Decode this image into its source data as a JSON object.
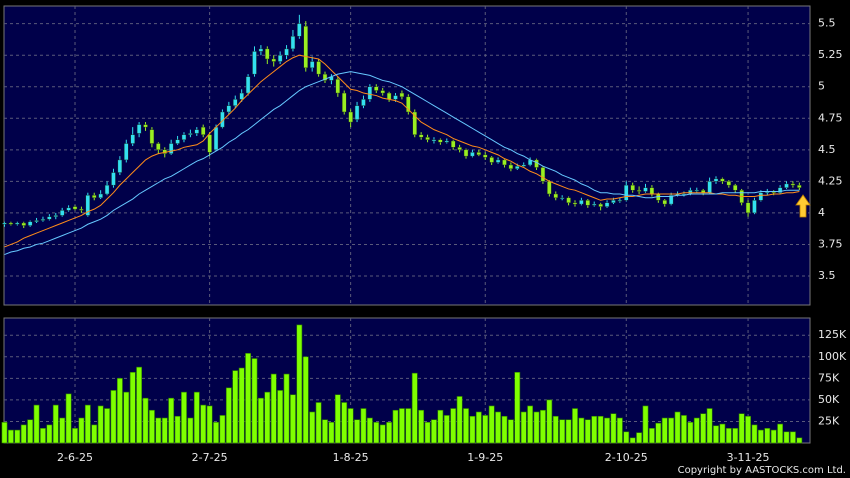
{
  "chart_data": [
    {
      "type": "candlestick",
      "up_color": "#33e0f0",
      "down_color": "#99ee22",
      "ylim": [
        3.27,
        5.64
      ],
      "yticks": [
        3.5,
        3.75,
        4,
        4.25,
        4.5,
        4.75,
        5,
        5.25,
        5.5
      ],
      "grid": true,
      "open": [
        3.91,
        3.92,
        3.91,
        3.92,
        3.9,
        3.93,
        3.94,
        3.95,
        3.97,
        3.98,
        4.02,
        4.05,
        4.03,
        3.98,
        4.14,
        4.12,
        4.15,
        4.22,
        4.32,
        4.42,
        4.55,
        4.63,
        4.7,
        4.66,
        4.55,
        4.5,
        4.47,
        4.55,
        4.58,
        4.62,
        4.63,
        4.68,
        4.62,
        4.5,
        4.68,
        4.8,
        4.85,
        4.9,
        4.95,
        5.1,
        5.28,
        5.3,
        5.22,
        5.2,
        5.25,
        5.3,
        5.4,
        5.48,
        5.15,
        5.2,
        5.1,
        5.05,
        5.06,
        4.95,
        4.8,
        4.74,
        4.85,
        4.9,
        5.0,
        4.97,
        4.95,
        4.9,
        4.95,
        4.92,
        4.8,
        4.62,
        4.6,
        4.57,
        4.58,
        4.56,
        4.57,
        4.52,
        4.5,
        4.45,
        4.48,
        4.46,
        4.44,
        4.4,
        4.42,
        4.38,
        4.35,
        4.37,
        4.38,
        4.42,
        4.36,
        4.25,
        4.15,
        4.12,
        4.12,
        4.08,
        4.07,
        4.1,
        4.06,
        4.07,
        4.05,
        4.08,
        4.1,
        4.1,
        4.22,
        4.18,
        4.17,
        4.2,
        4.15,
        4.1,
        4.07,
        4.14,
        4.15,
        4.15,
        4.18,
        4.18,
        4.16,
        4.25,
        4.27,
        4.25,
        4.22,
        4.18,
        4.08,
        4.0,
        4.1,
        4.16,
        4.17,
        4.16,
        4.2,
        4.23,
        4.22
      ],
      "high": [
        3.93,
        3.93,
        3.93,
        3.93,
        3.94,
        3.96,
        3.97,
        3.99,
        4.0,
        4.04,
        4.06,
        4.06,
        4.05,
        4.16,
        4.16,
        4.18,
        4.25,
        4.35,
        4.45,
        4.58,
        4.68,
        4.72,
        4.72,
        4.68,
        4.56,
        4.52,
        4.58,
        4.61,
        4.64,
        4.66,
        4.68,
        4.7,
        4.64,
        4.7,
        4.82,
        4.88,
        4.93,
        4.98,
        5.1,
        5.32,
        5.33,
        5.32,
        5.25,
        5.28,
        5.33,
        5.45,
        5.57,
        5.52,
        5.24,
        5.22,
        5.12,
        5.1,
        5.08,
        4.97,
        4.82,
        4.88,
        4.93,
        5.02,
        5.02,
        4.99,
        4.96,
        4.95,
        4.97,
        4.94,
        4.82,
        4.64,
        4.62,
        4.6,
        4.59,
        4.59,
        4.58,
        4.54,
        4.51,
        4.5,
        4.5,
        4.48,
        4.45,
        4.44,
        4.43,
        4.4,
        4.39,
        4.4,
        4.44,
        4.43,
        4.37,
        4.26,
        4.17,
        4.14,
        4.13,
        4.1,
        4.12,
        4.11,
        4.09,
        4.08,
        4.1,
        4.12,
        4.12,
        4.25,
        4.24,
        4.21,
        4.23,
        4.22,
        4.16,
        4.11,
        4.16,
        4.17,
        4.17,
        4.2,
        4.2,
        4.19,
        4.28,
        4.29,
        4.28,
        4.26,
        4.23,
        4.19,
        4.1,
        4.12,
        4.18,
        4.19,
        4.18,
        4.22,
        4.25,
        4.25,
        4.24
      ],
      "low": [
        3.89,
        3.9,
        3.9,
        3.88,
        3.89,
        3.92,
        3.93,
        3.94,
        3.95,
        3.97,
        4.01,
        4.02,
        4.0,
        3.97,
        4.1,
        4.11,
        4.14,
        4.2,
        4.3,
        4.4,
        4.53,
        4.6,
        4.65,
        4.52,
        4.47,
        4.44,
        4.46,
        4.54,
        4.56,
        4.6,
        4.61,
        4.6,
        4.45,
        4.49,
        4.67,
        4.78,
        4.83,
        4.88,
        4.93,
        5.08,
        5.25,
        5.18,
        5.16,
        5.18,
        5.22,
        5.28,
        5.38,
        5.12,
        5.12,
        5.08,
        5.03,
        5.02,
        4.92,
        4.78,
        4.68,
        4.72,
        4.83,
        4.88,
        4.95,
        4.93,
        4.88,
        4.88,
        4.9,
        4.78,
        4.6,
        4.58,
        4.56,
        4.55,
        4.54,
        4.55,
        4.5,
        4.48,
        4.43,
        4.44,
        4.45,
        4.42,
        4.38,
        4.39,
        4.36,
        4.33,
        4.34,
        4.36,
        4.37,
        4.34,
        4.23,
        4.13,
        4.1,
        4.1,
        4.06,
        4.05,
        4.06,
        4.04,
        4.05,
        4.02,
        4.04,
        4.07,
        4.08,
        4.09,
        4.16,
        4.15,
        4.16,
        4.13,
        4.08,
        4.05,
        4.06,
        4.13,
        4.13,
        4.14,
        4.16,
        4.14,
        4.15,
        4.23,
        4.23,
        4.2,
        4.16,
        4.06,
        3.97,
        3.99,
        4.09,
        4.14,
        4.14,
        4.15,
        4.19,
        4.2,
        4.18
      ],
      "close": [
        3.92,
        3.91,
        3.92,
        3.9,
        3.93,
        3.94,
        3.95,
        3.97,
        3.98,
        4.02,
        4.04,
        4.03,
        4.02,
        4.14,
        4.12,
        4.15,
        4.22,
        4.32,
        4.42,
        4.55,
        4.62,
        4.7,
        4.68,
        4.55,
        4.5,
        4.47,
        4.55,
        4.58,
        4.62,
        4.63,
        4.66,
        4.62,
        4.48,
        4.68,
        4.8,
        4.85,
        4.9,
        4.95,
        5.08,
        5.28,
        5.3,
        5.22,
        5.2,
        5.25,
        5.3,
        5.4,
        5.5,
        5.15,
        5.2,
        5.1,
        5.05,
        5.08,
        4.95,
        4.8,
        4.72,
        4.85,
        4.9,
        5.0,
        4.97,
        4.95,
        4.9,
        4.93,
        4.92,
        4.8,
        4.62,
        4.6,
        4.58,
        4.58,
        4.56,
        4.57,
        4.52,
        4.5,
        4.45,
        4.48,
        4.46,
        4.44,
        4.4,
        4.42,
        4.38,
        4.35,
        4.37,
        4.38,
        4.42,
        4.36,
        4.25,
        4.15,
        4.12,
        4.12,
        4.08,
        4.07,
        4.1,
        4.06,
        4.07,
        4.05,
        4.08,
        4.1,
        4.1,
        4.22,
        4.18,
        4.17,
        4.2,
        4.15,
        4.1,
        4.07,
        4.14,
        4.15,
        4.15,
        4.18,
        4.18,
        4.16,
        4.25,
        4.27,
        4.25,
        4.22,
        4.18,
        4.08,
        4.0,
        4.1,
        4.16,
        4.17,
        4.16,
        4.2,
        4.23,
        4.22,
        4.2
      ],
      "series": [
        {
          "color": "#ff8c1a",
          "values": [
            3.73,
            3.75,
            3.77,
            3.8,
            3.82,
            3.84,
            3.86,
            3.88,
            3.9,
            3.92,
            3.94,
            3.96,
            3.98,
            4.01,
            4.03,
            4.06,
            4.11,
            4.16,
            4.22,
            4.27,
            4.32,
            4.37,
            4.42,
            4.45,
            4.47,
            4.48,
            4.49,
            4.5,
            4.52,
            4.53,
            4.54,
            4.57,
            4.63,
            4.68,
            4.73,
            4.78,
            4.83,
            4.89,
            4.94,
            4.99,
            5.04,
            5.08,
            5.12,
            5.16,
            5.2,
            5.23,
            5.25,
            5.24,
            5.23,
            5.22,
            5.18,
            5.13,
            5.08,
            5.03,
            4.98,
            4.97,
            4.95,
            4.94,
            4.93,
            4.91,
            4.9,
            4.89,
            4.87,
            4.82,
            4.77,
            4.72,
            4.69,
            4.66,
            4.64,
            4.62,
            4.59,
            4.57,
            4.55,
            4.53,
            4.52,
            4.5,
            4.48,
            4.46,
            4.43,
            4.41,
            4.38,
            4.36,
            4.33,
            4.31,
            4.28,
            4.25,
            4.23,
            4.21,
            4.19,
            4.18,
            4.16,
            4.14,
            4.12,
            4.1,
            4.11,
            4.11,
            4.12,
            4.13,
            4.13,
            4.14,
            4.15,
            4.15,
            4.15,
            4.15,
            4.15,
            4.15,
            4.16,
            4.16,
            4.16,
            4.16,
            4.16,
            4.15,
            4.15,
            4.14,
            4.14,
            4.13,
            4.13,
            4.13,
            4.14,
            4.14,
            4.15,
            4.15,
            4.16,
            4.16,
            4.17
          ]
        },
        {
          "color": "#66c8ff",
          "values": [
            3.67,
            3.69,
            3.7,
            3.72,
            3.73,
            3.75,
            3.76,
            3.78,
            3.8,
            3.82,
            3.84,
            3.86,
            3.88,
            3.91,
            3.93,
            3.95,
            3.98,
            4.02,
            4.05,
            4.08,
            4.11,
            4.15,
            4.18,
            4.21,
            4.24,
            4.27,
            4.29,
            4.32,
            4.35,
            4.38,
            4.41,
            4.43,
            4.46,
            4.49,
            4.52,
            4.56,
            4.59,
            4.63,
            4.66,
            4.7,
            4.74,
            4.78,
            4.82,
            4.85,
            4.89,
            4.93,
            4.97,
            5.0,
            5.02,
            5.04,
            5.06,
            5.08,
            5.1,
            5.11,
            5.12,
            5.11,
            5.1,
            5.09,
            5.07,
            5.05,
            5.04,
            5.02,
            5.0,
            4.97,
            4.94,
            4.91,
            4.88,
            4.85,
            4.82,
            4.79,
            4.76,
            4.73,
            4.7,
            4.67,
            4.64,
            4.61,
            4.58,
            4.55,
            4.52,
            4.5,
            4.47,
            4.45,
            4.42,
            4.4,
            4.37,
            4.35,
            4.33,
            4.3,
            4.28,
            4.26,
            4.23,
            4.21,
            4.18,
            4.16,
            4.16,
            4.15,
            4.15,
            4.14,
            4.14,
            4.13,
            4.12,
            4.12,
            4.13,
            4.13,
            4.13,
            4.14,
            4.14,
            4.15,
            4.15,
            4.15,
            4.15,
            4.15,
            4.16,
            4.16,
            4.16,
            4.16,
            4.16,
            4.16,
            4.17,
            4.17,
            4.17,
            4.17,
            4.18,
            4.18,
            4.18
          ]
        }
      ]
    },
    {
      "type": "bar",
      "color": "#7fff00",
      "ylim": [
        0,
        145000
      ],
      "yticks": [
        {
          "value": 25000,
          "label": "25K"
        },
        {
          "value": 50000,
          "label": "50K"
        },
        {
          "value": 75000,
          "label": "75K"
        },
        {
          "value": 100000,
          "label": "100K"
        },
        {
          "value": 125000,
          "label": "125K"
        }
      ],
      "grid": true,
      "categories": [
        null,
        null,
        null,
        null,
        null,
        null,
        null,
        null,
        null,
        null,
        null,
        "2-6-25",
        null,
        null,
        null,
        null,
        null,
        null,
        null,
        null,
        null,
        null,
        null,
        null,
        null,
        null,
        null,
        null,
        null,
        null,
        null,
        null,
        "2-7-25",
        null,
        null,
        null,
        null,
        null,
        null,
        null,
        null,
        null,
        null,
        null,
        null,
        null,
        null,
        null,
        null,
        null,
        null,
        null,
        null,
        null,
        "1-8-25",
        null,
        null,
        null,
        null,
        null,
        null,
        null,
        null,
        null,
        null,
        null,
        null,
        null,
        null,
        null,
        null,
        null,
        null,
        null,
        null,
        "1-9-25",
        null,
        null,
        null,
        null,
        null,
        null,
        null,
        null,
        null,
        null,
        null,
        null,
        null,
        null,
        null,
        null,
        null,
        null,
        null,
        null,
        null,
        "2-10-25",
        null,
        null,
        null,
        null,
        null,
        null,
        null,
        null,
        null,
        null,
        null,
        null,
        null,
        null,
        null,
        null,
        null,
        null,
        "3-11-25",
        null,
        null,
        null,
        null,
        null,
        null,
        null,
        null
      ],
      "values": [
        24000,
        15000,
        15000,
        21000,
        27000,
        44000,
        17000,
        21000,
        44000,
        29000,
        57000,
        17000,
        29000,
        44000,
        21000,
        43000,
        40000,
        61000,
        75000,
        59000,
        82000,
        88000,
        52000,
        38000,
        29000,
        29000,
        52000,
        31000,
        59000,
        29000,
        59000,
        44000,
        43000,
        24000,
        32000,
        64000,
        84000,
        87000,
        104000,
        98000,
        52000,
        59000,
        80000,
        61000,
        80000,
        56000,
        137000,
        100000,
        36000,
        47000,
        27000,
        24000,
        56000,
        47000,
        40000,
        27000,
        40000,
        29000,
        24000,
        21000,
        24000,
        38000,
        40000,
        40000,
        81000,
        38000,
        24000,
        27000,
        38000,
        32000,
        40000,
        54000,
        40000,
        31000,
        36000,
        32000,
        43000,
        36000,
        31000,
        27000,
        82000,
        36000,
        43000,
        36000,
        38000,
        50000,
        31000,
        27000,
        27000,
        40000,
        29000,
        27000,
        31000,
        31000,
        29000,
        34000,
        29000,
        13000,
        6000,
        12000,
        43000,
        17000,
        23000,
        29000,
        29000,
        36000,
        32000,
        24000,
        29000,
        34000,
        40000,
        20000,
        22000,
        17000,
        17000,
        34000,
        31000,
        21000,
        15000,
        17000,
        15000,
        22000,
        13000,
        13000,
        6000
      ]
    },
    {
      "source": "Copyright by AASTOCKS.com Ltd."
    }
  ]
}
